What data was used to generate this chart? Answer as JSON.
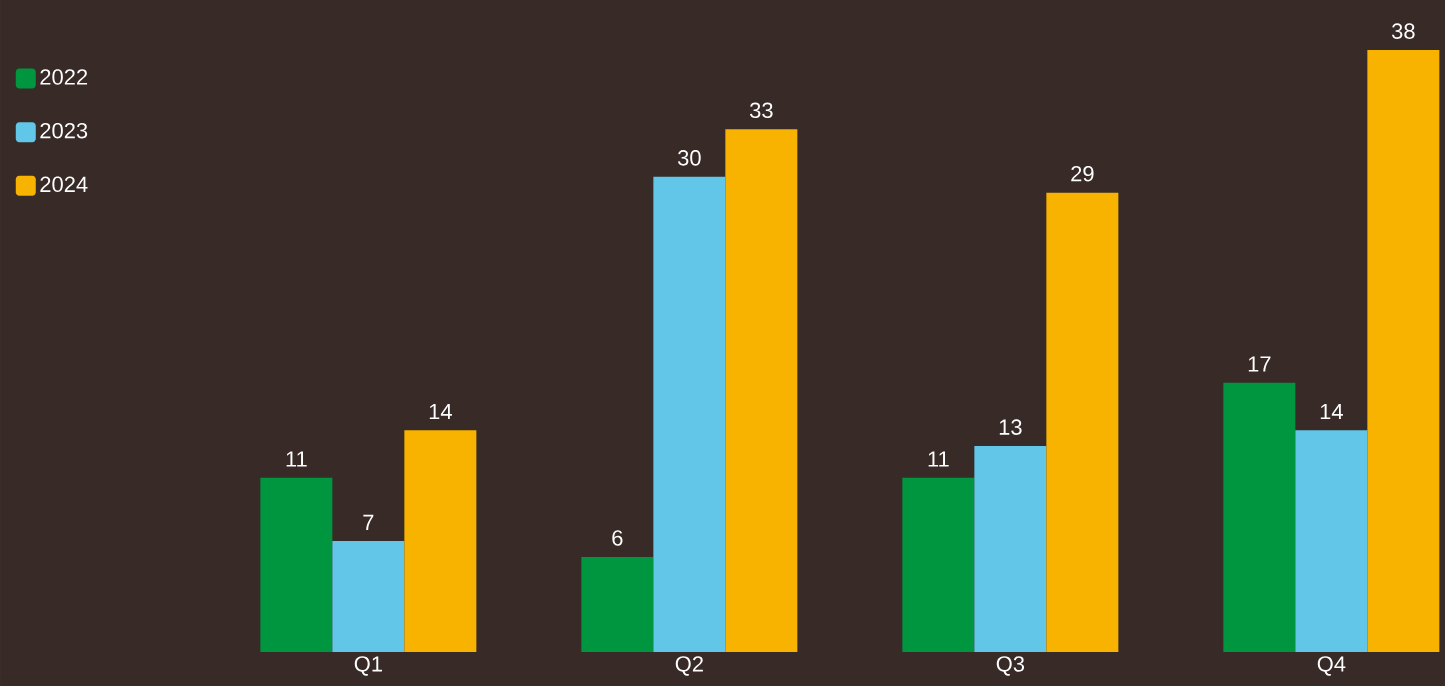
{
  "chart_data": {
    "type": "bar",
    "categories": [
      "Q1",
      "Q2",
      "Q3",
      "Q4"
    ],
    "series": [
      {
        "name": "2022",
        "color": "#00963f",
        "values": [
          11,
          6,
          11,
          17
        ]
      },
      {
        "name": "2023",
        "color": "#62c6e8",
        "values": [
          7,
          30,
          13,
          14
        ]
      },
      {
        "name": "2024",
        "color": "#f8b200",
        "values": [
          14,
          33,
          29,
          38
        ]
      }
    ],
    "data_labels": true,
    "legend": "top left"
  }
}
